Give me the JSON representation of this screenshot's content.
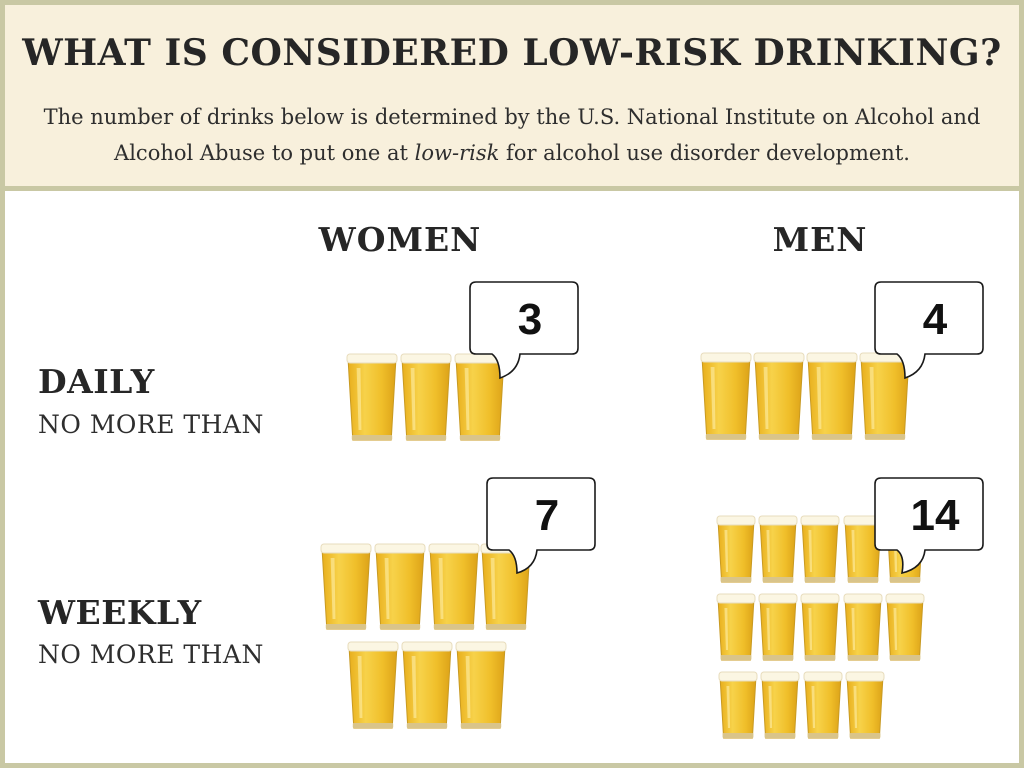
{
  "header": {
    "title": "WHAT IS CONSIDERED LOW-RISK DRINKING?",
    "subtitle_part1": "The number of drinks below is determined by the U.S. National Institute on Alcohol and Alcohol Abuse to put one at",
    "subtitle_emphasis": "low-risk",
    "subtitle_part2": "for alcohol use disorder development."
  },
  "columns": {
    "women": "WOMEN",
    "men": "MEN"
  },
  "rows": {
    "daily": {
      "label": "DAILY",
      "sublabel": "NO MORE THAN"
    },
    "weekly": {
      "label": "WEEKLY",
      "sublabel": "NO MORE THAN"
    }
  },
  "limits": {
    "women_daily": "3",
    "men_daily": "4",
    "women_weekly": "7",
    "men_weekly": "14"
  },
  "icons": {
    "drink": "beer-glass-icon",
    "callout": "speech-bubble-icon"
  },
  "colors": {
    "beer": "#f2c230",
    "foam": "#fbf6e3",
    "border": "#c9c8a4",
    "header_bg": "#f8f0dc"
  }
}
